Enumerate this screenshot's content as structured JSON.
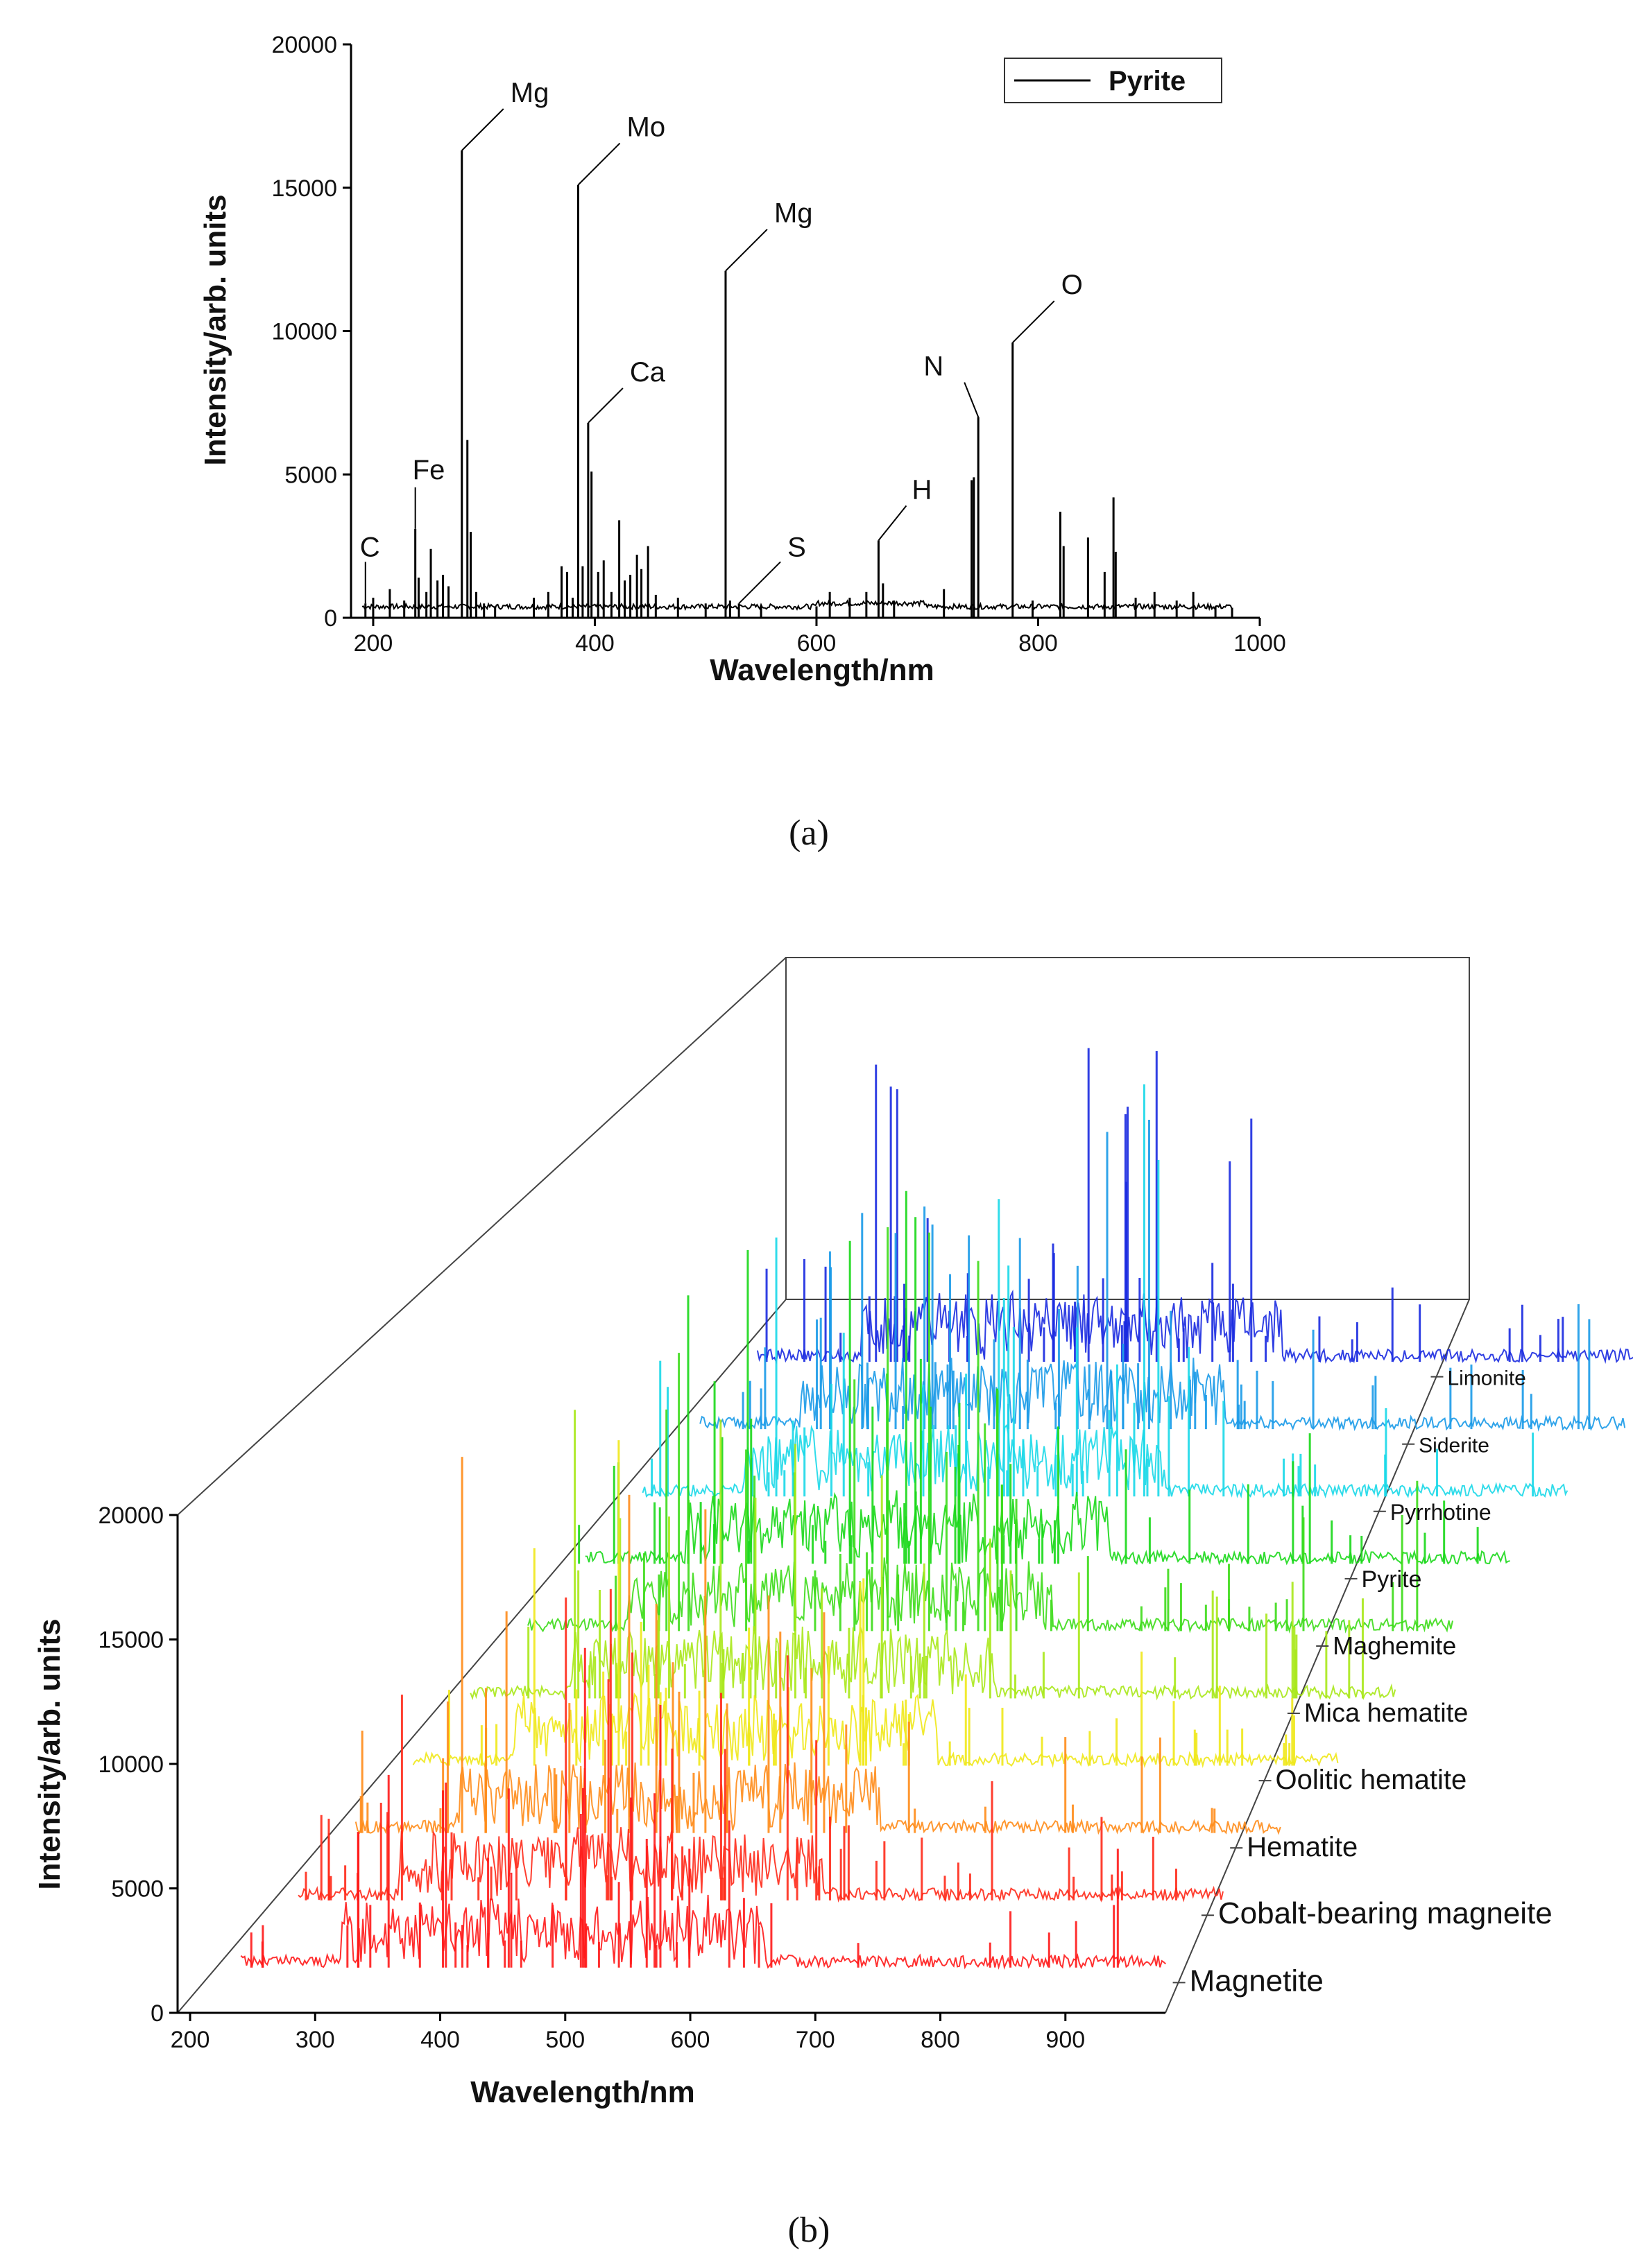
{
  "chart_data": [
    {
      "panel": "a",
      "type": "line",
      "caption": "(a)",
      "xlabel": "Wavelength/nm",
      "ylabel": "Intensity/arb. units",
      "xlim": [
        180,
        1000
      ],
      "ylim": [
        0,
        20000
      ],
      "xticks": [
        200,
        400,
        600,
        800,
        1000
      ],
      "yticks": [
        0,
        5000,
        10000,
        15000,
        20000
      ],
      "legend": {
        "label": "Pyrite",
        "position": "top-right"
      },
      "series": [
        {
          "name": "Pyrite",
          "baseline": 300,
          "peaks": [
            [
              193,
              500
            ],
            [
              200,
              700
            ],
            [
              215,
              1000
            ],
            [
              228,
              600
            ],
            [
              238,
              3100
            ],
            [
              241,
              1400
            ],
            [
              248,
              900
            ],
            [
              252,
              2400
            ],
            [
              258,
              1300
            ],
            [
              263,
              1500
            ],
            [
              268,
              1100
            ],
            [
              280,
              16300
            ],
            [
              285,
              6200
            ],
            [
              288,
              3000
            ],
            [
              293,
              900
            ],
            [
              300,
              500
            ],
            [
              310,
              400
            ],
            [
              345,
              700
            ],
            [
              358,
              900
            ],
            [
              370,
              1800
            ],
            [
              375,
              1600
            ],
            [
              380,
              700
            ],
            [
              385,
              15100
            ],
            [
              389,
              1800
            ],
            [
              394,
              6800
            ],
            [
              397,
              5100
            ],
            [
              403,
              1600
            ],
            [
              408,
              2000
            ],
            [
              415,
              900
            ],
            [
              422,
              3400
            ],
            [
              427,
              1300
            ],
            [
              432,
              1500
            ],
            [
              438,
              2200
            ],
            [
              442,
              1700
            ],
            [
              448,
              2500
            ],
            [
              455,
              800
            ],
            [
              475,
              700
            ],
            [
              500,
              500
            ],
            [
              518,
              12100
            ],
            [
              522,
              600
            ],
            [
              530,
              500
            ],
            [
              550,
              400
            ],
            [
              600,
              400
            ],
            [
              612,
              900
            ],
            [
              630,
              700
            ],
            [
              645,
              900
            ],
            [
              656,
              2700
            ],
            [
              660,
              1200
            ],
            [
              670,
              600
            ],
            [
              715,
              1000
            ],
            [
              740,
              4800
            ],
            [
              742,
              4900
            ],
            [
              746,
              7000
            ],
            [
              777,
              9600
            ],
            [
              795,
              600
            ],
            [
              820,
              3700
            ],
            [
              823,
              2500
            ],
            [
              845,
              2800
            ],
            [
              860,
              1600
            ],
            [
              868,
              4200
            ],
            [
              870,
              2300
            ],
            [
              888,
              700
            ],
            [
              905,
              900
            ],
            [
              925,
              600
            ],
            [
              940,
              900
            ],
            [
              960,
              400
            ],
            [
              975,
              350
            ]
          ]
        }
      ],
      "annotations": [
        {
          "text": "C",
          "x": 193,
          "y": 500
        },
        {
          "text": "Fe",
          "x": 238,
          "y": 3100
        },
        {
          "text": "Mg",
          "x": 280,
          "y": 16300
        },
        {
          "text": "Mo",
          "x": 385,
          "y": 15100
        },
        {
          "text": "Ca",
          "x": 394,
          "y": 6800
        },
        {
          "text": "Mg",
          "x": 518,
          "y": 12100
        },
        {
          "text": "S",
          "x": 530,
          "y": 500
        },
        {
          "text": "H",
          "x": 656,
          "y": 2700
        },
        {
          "text": "N",
          "x": 746,
          "y": 7000
        },
        {
          "text": "O",
          "x": 777,
          "y": 9600
        }
      ]
    },
    {
      "panel": "b",
      "type": "line",
      "caption": "(b)",
      "xlabel": "Wavelength/nm",
      "ylabel": "Intensity/arb. units",
      "xlim": [
        190,
        980
      ],
      "ylim": [
        0,
        20000
      ],
      "xticks": [
        200,
        300,
        400,
        500,
        600,
        700,
        800,
        900
      ],
      "yticks": [
        0,
        5000,
        10000,
        15000,
        20000
      ],
      "series": [
        {
          "name": "Magnetite",
          "color": "#ff1a1a"
        },
        {
          "name": "Cobalt-bearing magneite",
          "color": "#ff2a1a"
        },
        {
          "name": "Hematite",
          "color": "#ff8c1a"
        },
        {
          "name": "Oolitic hematite",
          "color": "#f0e81a"
        },
        {
          "name": "Mica hematite",
          "color": "#a8e81a"
        },
        {
          "name": "Maghemite",
          "color": "#3ddc1a"
        },
        {
          "name": "Pyrite",
          "color": "#1ad81a"
        },
        {
          "name": "Pyrrhotine",
          "color": "#1ad8e8"
        },
        {
          "name": "Siderite",
          "color": "#1a9ae8"
        },
        {
          "name": "Limonite",
          "color": "#1a2ae0"
        }
      ]
    }
  ]
}
